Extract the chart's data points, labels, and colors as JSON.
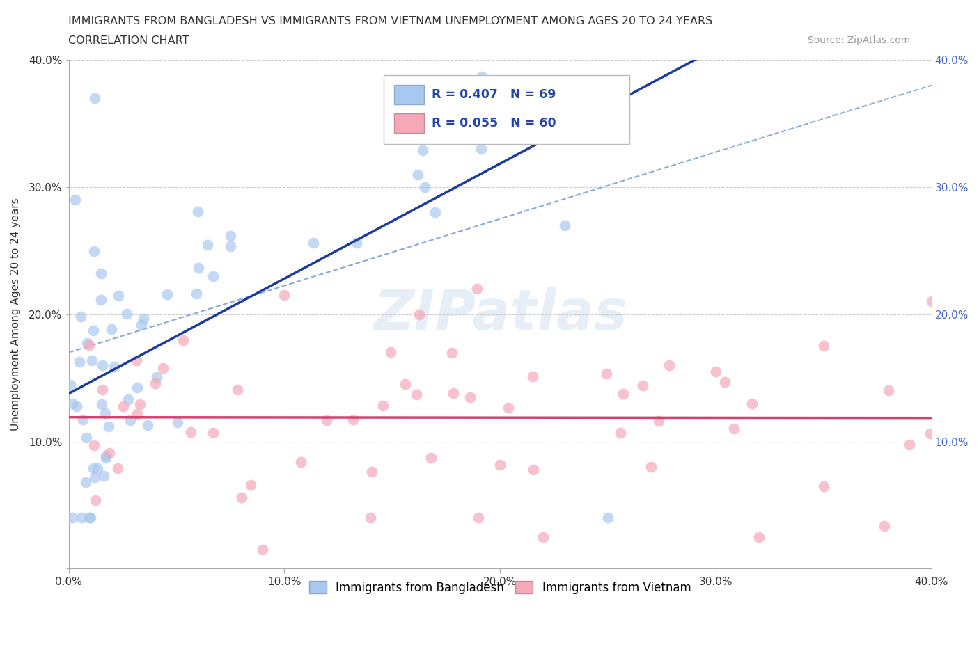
{
  "title_line1": "IMMIGRANTS FROM BANGLADESH VS IMMIGRANTS FROM VIETNAM UNEMPLOYMENT AMONG AGES 20 TO 24 YEARS",
  "title_line2": "CORRELATION CHART",
  "source_text": "Source: ZipAtlas.com",
  "watermark": "ZIPatlas",
  "ylabel": "Unemployment Among Ages 20 to 24 years",
  "xlim": [
    0.0,
    0.4
  ],
  "ylim": [
    0.0,
    0.4
  ],
  "bangladesh_color": "#a8c8f0",
  "vietnam_color": "#f4a8b8",
  "bangladesh_line_color": "#1a3a9e",
  "vietnam_line_color": "#d44070",
  "diagonal_color": "#88aadd",
  "R_bangladesh": 0.407,
  "N_bangladesh": 69,
  "R_vietnam": 0.055,
  "N_vietnam": 60,
  "legend_label_bangladesh": "Immigrants from Bangladesh",
  "legend_label_vietnam": "Immigrants from Vietnam",
  "background_color": "#ffffff",
  "grid_color": "#cccccc",
  "right_tick_color": "#4466cc",
  "left_tick_color": "#333333"
}
